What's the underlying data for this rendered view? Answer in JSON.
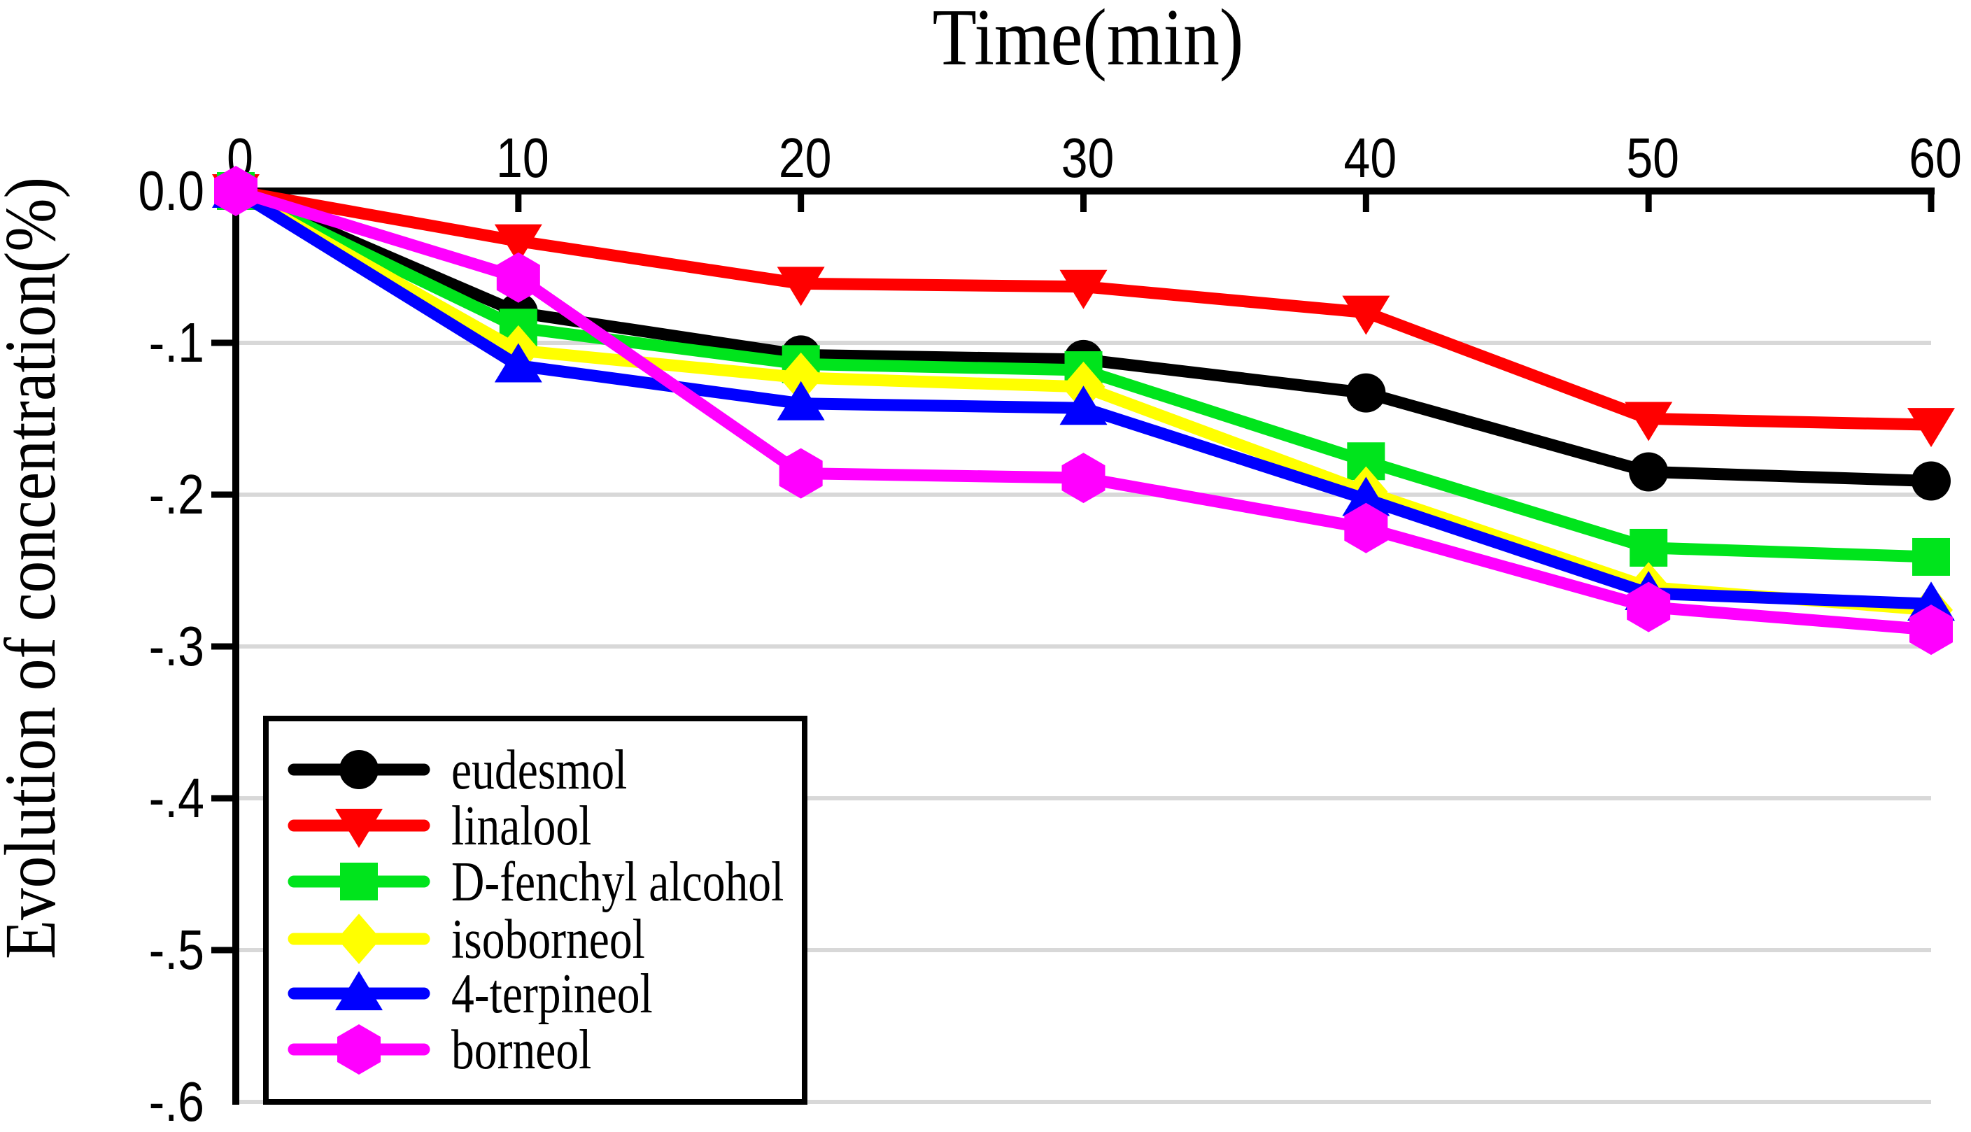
{
  "chart_data": {
    "type": "line",
    "title": "Time(min)",
    "title_position": "top",
    "xlabel": "",
    "ylabel": "Evolution of concentration(%)",
    "x_axis_position": "top",
    "xlim": [
      0,
      60
    ],
    "ylim": [
      -0.6,
      0.0
    ],
    "grid": "horizontal",
    "grid_color": "#d8d8d8",
    "axis_color": "#000000",
    "x_tick_labels": [
      "0",
      "10",
      "20",
      "30",
      "40",
      "50",
      "60"
    ],
    "x_tick_values": [
      0,
      10,
      20,
      30,
      40,
      50,
      60
    ],
    "y_tick_labels": [
      "0.0",
      "-.1",
      "-.2",
      "-.3",
      "-.4",
      "-.5",
      "-.6"
    ],
    "y_tick_values": [
      0,
      -0.1,
      -0.2,
      -0.3,
      -0.4,
      -0.5,
      -0.6
    ],
    "x": [
      0,
      10,
      20,
      30,
      40,
      50,
      60
    ],
    "series": [
      {
        "name": "eudesmol",
        "color": "#000000",
        "marker": "circle",
        "values": [
          0,
          -0.08,
          -0.108,
          -0.111,
          -0.133,
          -0.185,
          -0.191
        ]
      },
      {
        "name": "linalool",
        "color": "#ff0000",
        "marker": "triangle-down",
        "values": [
          0,
          -0.033,
          -0.061,
          -0.063,
          -0.08,
          -0.15,
          -0.154
        ]
      },
      {
        "name": "D-fenchyl alcohol",
        "color": "#00e41c",
        "marker": "square",
        "values": [
          0,
          -0.09,
          -0.114,
          -0.118,
          -0.178,
          -0.235,
          -0.241
        ]
      },
      {
        "name": "isoborneol",
        "color": "#ffff00",
        "marker": "diamond",
        "values": [
          0,
          -0.105,
          -0.123,
          -0.129,
          -0.198,
          -0.261,
          -0.276
        ]
      },
      {
        "name": "4-terpineol",
        "color": "#0000ff",
        "marker": "triangle-up",
        "values": [
          0,
          -0.115,
          -0.14,
          -0.143,
          -0.203,
          -0.265,
          -0.272
        ]
      },
      {
        "name": "borneol",
        "color": "#ff00ff",
        "marker": "hexagon",
        "values": [
          0,
          -0.057,
          -0.186,
          -0.189,
          -0.222,
          -0.274,
          -0.289
        ]
      }
    ],
    "legend_position": "lower-left",
    "legend_border_color": "#000000",
    "legend_background": "#ffffff"
  }
}
